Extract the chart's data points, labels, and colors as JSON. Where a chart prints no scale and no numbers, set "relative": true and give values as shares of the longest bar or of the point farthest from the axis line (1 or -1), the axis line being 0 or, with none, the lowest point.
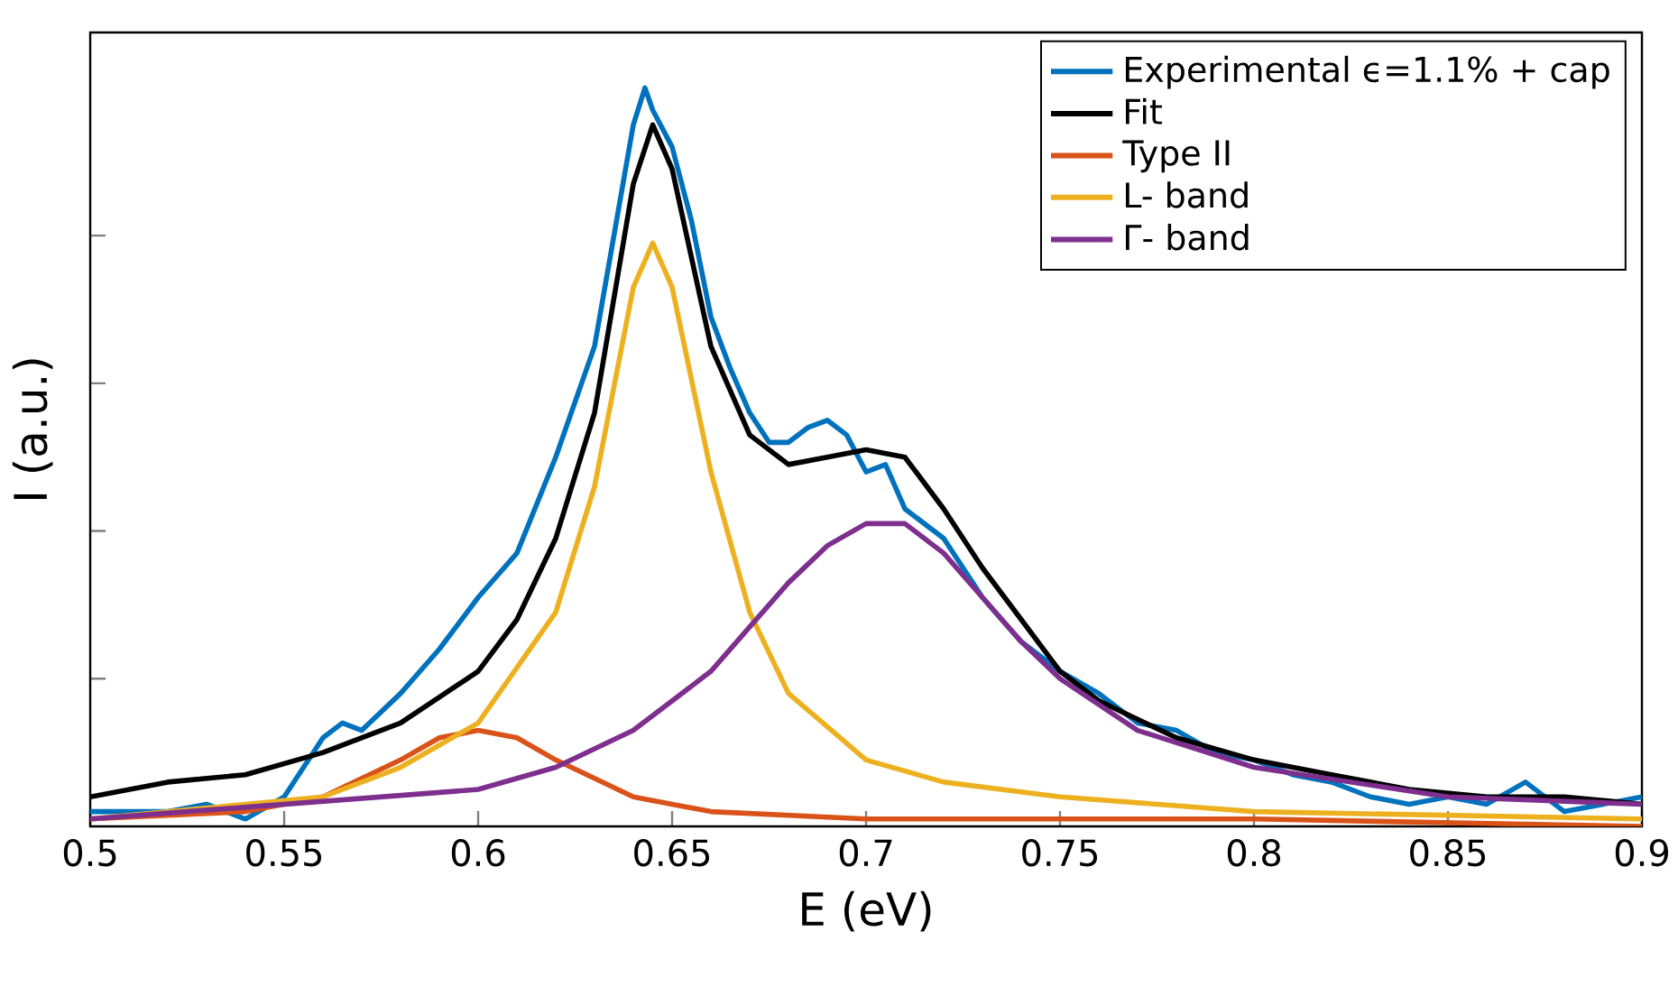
{
  "chart_data": {
    "type": "line",
    "relative": true,
    "xlabel": "E (eV)",
    "ylabel": "I (a.u.)",
    "xlim": [
      0.5,
      0.9
    ],
    "xticks": [
      0.5,
      0.55,
      0.6,
      0.65,
      0.7,
      0.75,
      0.8,
      0.85,
      0.9
    ],
    "grid": false,
    "legend": "top right",
    "marker": "none",
    "line_style": "solid",
    "series": [
      {
        "name": "Experimental ϵ=1.1% + cap",
        "color": "#0072bd",
        "x": [
          0.5,
          0.51,
          0.52,
          0.53,
          0.54,
          0.55,
          0.56,
          0.565,
          0.57,
          0.58,
          0.59,
          0.6,
          0.61,
          0.62,
          0.63,
          0.635,
          0.64,
          0.643,
          0.645,
          0.65,
          0.655,
          0.66,
          0.665,
          0.67,
          0.675,
          0.68,
          0.685,
          0.69,
          0.695,
          0.7,
          0.705,
          0.71,
          0.72,
          0.73,
          0.74,
          0.75,
          0.76,
          0.77,
          0.78,
          0.79,
          0.8,
          0.81,
          0.82,
          0.83,
          0.84,
          0.85,
          0.86,
          0.87,
          0.88,
          0.89,
          0.9
        ],
        "values": [
          0.02,
          0.02,
          0.02,
          0.03,
          0.01,
          0.04,
          0.12,
          0.14,
          0.13,
          0.18,
          0.24,
          0.31,
          0.37,
          0.5,
          0.65,
          0.8,
          0.95,
          1.0,
          0.97,
          0.92,
          0.82,
          0.69,
          0.62,
          0.56,
          0.52,
          0.52,
          0.54,
          0.55,
          0.53,
          0.48,
          0.49,
          0.43,
          0.39,
          0.31,
          0.25,
          0.21,
          0.18,
          0.14,
          0.13,
          0.1,
          0.09,
          0.07,
          0.06,
          0.04,
          0.03,
          0.04,
          0.03,
          0.06,
          0.02,
          0.03,
          0.04
        ]
      },
      {
        "name": "Fit",
        "color": "#000000",
        "x": [
          0.5,
          0.52,
          0.54,
          0.56,
          0.58,
          0.6,
          0.61,
          0.62,
          0.63,
          0.64,
          0.645,
          0.65,
          0.66,
          0.67,
          0.68,
          0.69,
          0.7,
          0.71,
          0.72,
          0.73,
          0.74,
          0.75,
          0.76,
          0.78,
          0.8,
          0.82,
          0.84,
          0.86,
          0.88,
          0.9
        ],
        "values": [
          0.04,
          0.06,
          0.07,
          0.1,
          0.14,
          0.21,
          0.28,
          0.39,
          0.56,
          0.87,
          0.95,
          0.89,
          0.65,
          0.53,
          0.49,
          0.5,
          0.51,
          0.5,
          0.43,
          0.35,
          0.28,
          0.21,
          0.17,
          0.12,
          0.09,
          0.07,
          0.05,
          0.04,
          0.04,
          0.03
        ]
      },
      {
        "name": "Type II",
        "color": "#d95319",
        "x": [
          0.5,
          0.54,
          0.56,
          0.58,
          0.59,
          0.6,
          0.61,
          0.62,
          0.64,
          0.66,
          0.7,
          0.8,
          0.9
        ],
        "values": [
          0.01,
          0.02,
          0.04,
          0.09,
          0.12,
          0.13,
          0.12,
          0.09,
          0.04,
          0.02,
          0.01,
          0.01,
          0.0
        ]
      },
      {
        "name": "L- band",
        "color": "#edb120",
        "x": [
          0.5,
          0.54,
          0.56,
          0.58,
          0.6,
          0.62,
          0.63,
          0.64,
          0.645,
          0.65,
          0.66,
          0.67,
          0.68,
          0.7,
          0.72,
          0.75,
          0.8,
          0.9
        ],
        "values": [
          0.01,
          0.03,
          0.04,
          0.08,
          0.14,
          0.29,
          0.46,
          0.73,
          0.79,
          0.73,
          0.48,
          0.29,
          0.18,
          0.09,
          0.06,
          0.04,
          0.02,
          0.01
        ]
      },
      {
        "name": "Γ- band",
        "color": "#7e2f8e",
        "x": [
          0.5,
          0.55,
          0.6,
          0.62,
          0.64,
          0.66,
          0.67,
          0.68,
          0.69,
          0.7,
          0.705,
          0.71,
          0.72,
          0.73,
          0.74,
          0.75,
          0.77,
          0.8,
          0.85,
          0.9
        ],
        "values": [
          0.01,
          0.03,
          0.05,
          0.08,
          0.13,
          0.21,
          0.27,
          0.33,
          0.38,
          0.41,
          0.41,
          0.41,
          0.37,
          0.31,
          0.25,
          0.2,
          0.13,
          0.08,
          0.04,
          0.03
        ]
      }
    ]
  }
}
